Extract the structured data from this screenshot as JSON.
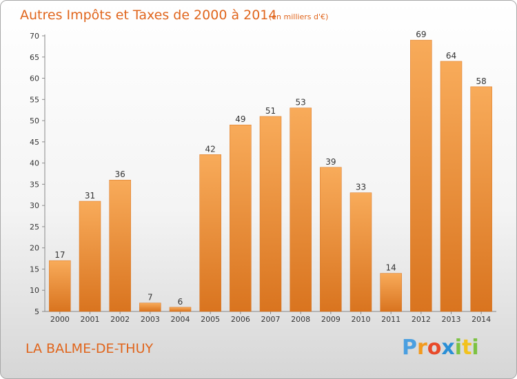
{
  "chart_data": {
    "type": "bar",
    "title": "Autres Impôts et Taxes de 2000 à 2014",
    "subtitle": "(en milliers d'€)",
    "categories": [
      "2000",
      "2001",
      "2002",
      "2003",
      "2004",
      "2005",
      "2006",
      "2007",
      "2008",
      "2009",
      "2010",
      "2011",
      "2012",
      "2013",
      "2014"
    ],
    "values": [
      17,
      31,
      36,
      7,
      6,
      42,
      49,
      51,
      53,
      39,
      33,
      14,
      69,
      64,
      58
    ],
    "ylim": [
      5,
      70
    ],
    "yticks": [
      5,
      10,
      15,
      20,
      25,
      30,
      35,
      40,
      45,
      50,
      55,
      60,
      65,
      70
    ],
    "grid": false,
    "colors": {
      "bar": "#f29a42",
      "bar_light": "#f8b062",
      "bar_dark": "#d9741f",
      "text": "#e0651c"
    }
  },
  "commune": "LA BALME-DE-THUY",
  "logo": {
    "letters": [
      "P",
      "r",
      "o",
      "x",
      "i",
      "t",
      "i"
    ],
    "colors": [
      "#4a9fe0",
      "#f29a1e",
      "#e84a2a",
      "#2a8fd6",
      "#7cc242",
      "#f2c21e",
      "#7cc242"
    ]
  }
}
